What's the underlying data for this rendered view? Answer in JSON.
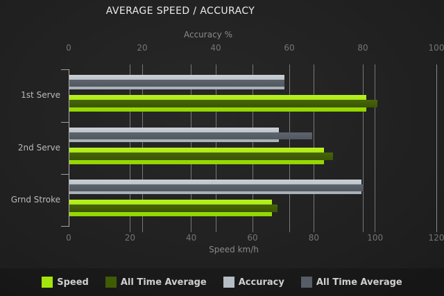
{
  "title": "AVERAGE SPEED / ACCURACY",
  "chart_data": {
    "type": "bar",
    "orientation": "horizontal",
    "grid": true,
    "categories": [
      "1st Serve",
      "2nd Serve",
      "Grnd Stroke"
    ],
    "series": [
      {
        "name": "Speed",
        "axis": "speed",
        "color": "#a4e40c",
        "values": [
          97,
          83,
          66
        ]
      },
      {
        "name": "All Time Average",
        "axis": "speed",
        "color": "#3f5c04",
        "values": [
          100.5,
          86,
          68
        ]
      },
      {
        "name": "Accuracy",
        "axis": "accuracy",
        "color": "#b6bdc4",
        "values": [
          58.5,
          57,
          79.5
        ]
      },
      {
        "name": "All Time Average",
        "axis": "accuracy",
        "color": "#565d66",
        "values": [
          58.5,
          66,
          80
        ]
      }
    ],
    "axes": {
      "top": {
        "label": "Accuracy %",
        "min": 0,
        "max": 100,
        "ticks": [
          0,
          20,
          40,
          60,
          80,
          100
        ]
      },
      "bottom": {
        "label": "Speed km/h",
        "min": 0,
        "max": 120,
        "ticks": [
          0,
          20,
          40,
          60,
          80,
          100,
          120
        ]
      }
    },
    "legend_position": "bottom"
  },
  "legend": {
    "items": [
      {
        "label": "Speed",
        "color": "#a4e40c"
      },
      {
        "label": "All Time Average",
        "color": "#3f5c04"
      },
      {
        "label": "Accuracy",
        "color": "#b6bdc4"
      },
      {
        "label": "All Time Average",
        "color": "#565d66"
      }
    ]
  },
  "colors": {
    "background": "#1e1e1e",
    "title_text": "#ececec",
    "axis_text": "#8a8a8a",
    "tick_text": "#757575",
    "category_text": "#bbbbbb",
    "gridline": "#8f8f8f",
    "legend_text": "#cfcfcf"
  }
}
